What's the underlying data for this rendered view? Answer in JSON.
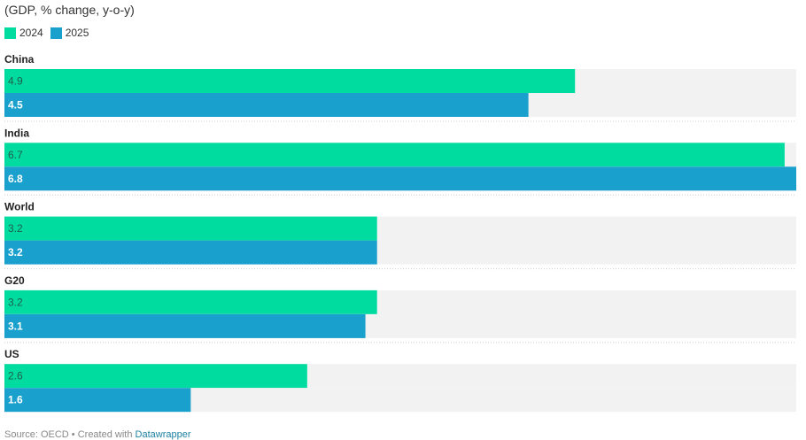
{
  "chart_data": {
    "type": "bar",
    "orientation": "horizontal",
    "subtitle": "(GDP, % change, y-o-y)",
    "categories": [
      "China",
      "India",
      "World",
      "G20",
      "US"
    ],
    "series": [
      {
        "name": "2024",
        "color": "#00dca0",
        "values": [
          4.9,
          6.7,
          3.2,
          3.2,
          2.6
        ],
        "labels": [
          "4.9",
          "6.7",
          "3.2",
          "3.2",
          "2.6"
        ]
      },
      {
        "name": "2025",
        "color": "#19a0cc",
        "values": [
          4.5,
          6.8,
          3.2,
          3.1,
          1.6
        ],
        "labels": [
          "4.5",
          "6.8",
          "3.2",
          "3.1",
          "1.6"
        ]
      }
    ],
    "xlim": [
      0,
      6.8
    ],
    "grid": false,
    "legend_position": "top-left",
    "background_bar_color": "#f2f2f2"
  },
  "footer": {
    "source": "Source: OECD • Created with ",
    "link": "Datawrapper"
  }
}
